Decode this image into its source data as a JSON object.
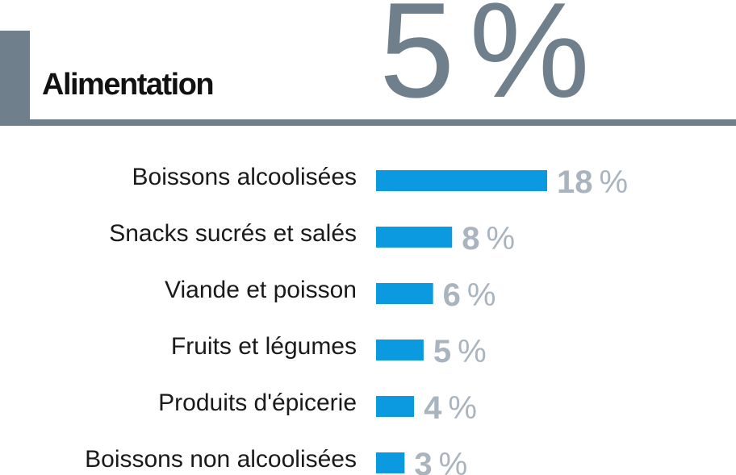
{
  "header": {
    "title": "Alimentation",
    "stat_value": "5",
    "stat_unit": "%"
  },
  "colors": {
    "accent": "#6f7f8c",
    "bar": "#0b9ae0",
    "value_label": "#a9b4bf"
  },
  "chart_data": {
    "type": "bar",
    "orientation": "horizontal",
    "categories": [
      "Boissons alcoolisées",
      "Snacks sucrés et salés",
      "Viande et poisson",
      "Fruits et légumes",
      "Produits d'épicerie",
      "Boissons non alcoolisées"
    ],
    "values": [
      18,
      8,
      6,
      5,
      4,
      3
    ],
    "value_suffix": "%",
    "xlim": [
      0,
      18
    ],
    "grid": false,
    "legend": "none"
  }
}
